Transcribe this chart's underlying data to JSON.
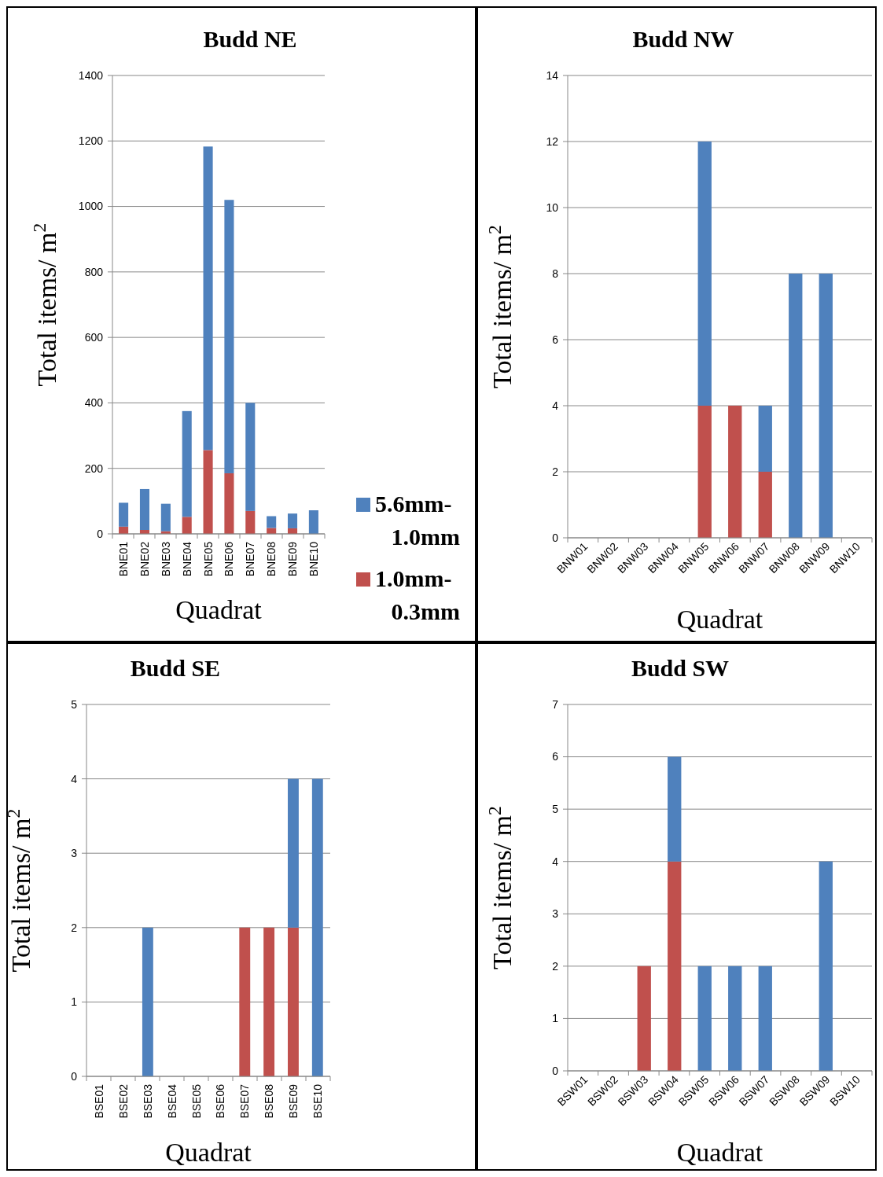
{
  "chart_data": [
    {
      "type": "bar",
      "title": "Budd NE",
      "xlabel": "Quadrat",
      "ylabel": "Total items/ m$^{2}$",
      "stacked": true,
      "categories": [
        "BNE01",
        "BNE02",
        "BNE03",
        "BNE04",
        "BNE05",
        "BNE06",
        "BNE07",
        "BNE08",
        "BNE09",
        "BNE10"
      ],
      "series": [
        {
          "name": "1.0mm-0.3mm",
          "color": "#c0504d",
          "values": [
            22,
            12,
            8,
            52,
            256,
            185,
            70,
            18,
            17,
            0
          ]
        },
        {
          "name": "5.6mm-1.0mm",
          "color": "#4f81bd",
          "values": [
            73,
            125,
            84,
            323,
            927,
            835,
            330,
            36,
            45,
            72
          ]
        }
      ],
      "ylim": [
        0,
        1400
      ],
      "yticks": [
        0,
        200,
        400,
        600,
        800,
        1000,
        1200,
        1400
      ],
      "grid": "y",
      "legend": "bottom right"
    },
    {
      "type": "bar",
      "title": "Budd NW",
      "xlabel": "Quadrat",
      "ylabel": "Total items/ m$^{2}$",
      "stacked": true,
      "categories": [
        "BNW01",
        "BNW02",
        "BNW03",
        "BNW04",
        "BNW05",
        "BNW06",
        "BNW07",
        "BNW08",
        "BNW09",
        "BNW10"
      ],
      "series": [
        {
          "color": "#c0504d",
          "values": [
            0,
            0,
            0,
            0,
            4,
            4,
            2,
            0,
            0,
            0
          ]
        },
        {
          "color": "#4f81bd",
          "values": [
            0,
            0,
            0,
            0,
            8,
            0,
            2,
            8,
            8,
            0
          ]
        }
      ],
      "ylim": [
        0,
        14
      ],
      "yticks": [
        0,
        2,
        4,
        6,
        8,
        10,
        12,
        14
      ],
      "grid": "y"
    },
    {
      "type": "bar",
      "title": "Budd SE",
      "xlabel": "Quadrat",
      "ylabel": "Total items/ m$^{2}$",
      "stacked": true,
      "categories": [
        "BSE01",
        "BSE02",
        "BSE03",
        "BSE04",
        "BSE05",
        "BSE06",
        "BSE07",
        "BSE08",
        "BSE09",
        "BSE10"
      ],
      "series": [
        {
          "color": "#c0504d",
          "values": [
            0,
            0,
            0,
            0,
            0,
            0,
            2,
            2,
            2,
            0
          ]
        },
        {
          "color": "#4f81bd",
          "values": [
            0,
            0,
            2,
            0,
            0,
            0,
            0,
            0,
            2,
            4
          ]
        }
      ],
      "ylim": [
        0,
        5
      ],
      "yticks": [
        0,
        1,
        2,
        3,
        4,
        5
      ],
      "grid": "y"
    },
    {
      "type": "bar",
      "title": "Budd SW",
      "xlabel": "Quadrat",
      "ylabel": "Total items/ m$^{2}$",
      "stacked": true,
      "categories": [
        "BSW01",
        "BSW02",
        "BSW03",
        "BSW04",
        "BSW05",
        "BSW06",
        "BSW07",
        "BSW08",
        "BSW09",
        "BSW10"
      ],
      "series": [
        {
          "color": "#c0504d",
          "values": [
            0,
            0,
            2,
            4,
            0,
            0,
            0,
            0,
            0,
            0
          ]
        },
        {
          "color": "#4f81bd",
          "values": [
            0,
            0,
            0,
            2,
            2,
            2,
            2,
            0,
            4,
            0
          ]
        }
      ],
      "ylim": [
        0,
        7
      ],
      "yticks": [
        0,
        1,
        2,
        3,
        4,
        5,
        6,
        7
      ],
      "grid": "y"
    }
  ]
}
